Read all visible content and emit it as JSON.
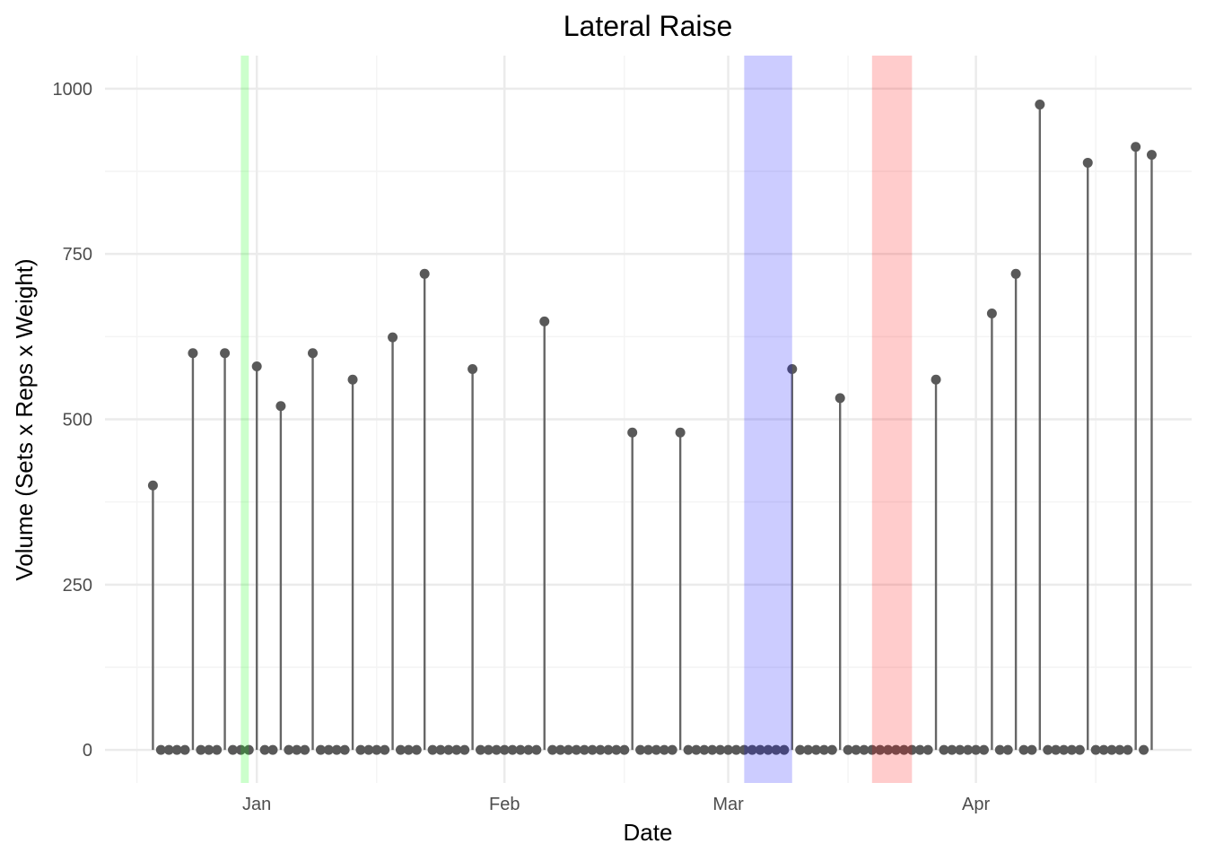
{
  "chart_data": {
    "type": "lollipop",
    "title": "Lateral Raise",
    "xlabel": "Date",
    "ylabel": "Volume (Sets x Reps x Weight)",
    "x_ticks": [
      {
        "date": "2025-01-01",
        "label": "Jan"
      },
      {
        "date": "2025-02-01",
        "label": "Feb"
      },
      {
        "date": "2025-03-01",
        "label": "Mar"
      },
      {
        "date": "2025-04-01",
        "label": "Apr"
      }
    ],
    "x_minor_ticks": [
      "2024-12-17",
      "2025-01-16",
      "2025-02-16",
      "2025-03-16",
      "2025-04-16"
    ],
    "xlim": [
      "2024-12-13",
      "2025-04-28"
    ],
    "ylim": [
      -50,
      1050
    ],
    "y_ticks": [
      0,
      250,
      500,
      750,
      1000
    ],
    "y_minor_ticks": [
      125,
      375,
      625,
      875
    ],
    "grid": true,
    "colors": {
      "stem": "#666666",
      "point": "#595959",
      "grid_major": "#ebebeb",
      "grid_minor": "#f4f4f4",
      "text": "#4d4d4d"
    },
    "highlights": [
      {
        "start": "2024-12-30",
        "end": "2024-12-31",
        "color": "#00ff00",
        "opacity": 0.2
      },
      {
        "start": "2025-03-03",
        "end": "2025-03-09",
        "color": "#0000ff",
        "opacity": 0.2
      },
      {
        "start": "2025-03-19",
        "end": "2025-03-24",
        "color": "#ff0000",
        "opacity": 0.2
      }
    ],
    "series": [
      {
        "points": [
          [
            "2024-12-19",
            400
          ],
          [
            "2024-12-20",
            0
          ],
          [
            "2024-12-21",
            0
          ],
          [
            "2024-12-22",
            0
          ],
          [
            "2024-12-23",
            0
          ],
          [
            "2024-12-24",
            600
          ],
          [
            "2024-12-25",
            0
          ],
          [
            "2024-12-26",
            0
          ],
          [
            "2024-12-27",
            0
          ],
          [
            "2024-12-28",
            600
          ],
          [
            "2024-12-29",
            0
          ],
          [
            "2024-12-30",
            0
          ],
          [
            "2024-12-31",
            0
          ],
          [
            "2025-01-01",
            580
          ],
          [
            "2025-01-02",
            0
          ],
          [
            "2025-01-03",
            0
          ],
          [
            "2025-01-04",
            520
          ],
          [
            "2025-01-05",
            0
          ],
          [
            "2025-01-06",
            0
          ],
          [
            "2025-01-07",
            0
          ],
          [
            "2025-01-08",
            600
          ],
          [
            "2025-01-09",
            0
          ],
          [
            "2025-01-10",
            0
          ],
          [
            "2025-01-11",
            0
          ],
          [
            "2025-01-12",
            0
          ],
          [
            "2025-01-13",
            560
          ],
          [
            "2025-01-14",
            0
          ],
          [
            "2025-01-15",
            0
          ],
          [
            "2025-01-16",
            0
          ],
          [
            "2025-01-17",
            0
          ],
          [
            "2025-01-18",
            624
          ],
          [
            "2025-01-19",
            0
          ],
          [
            "2025-01-20",
            0
          ],
          [
            "2025-01-21",
            0
          ],
          [
            "2025-01-22",
            720
          ],
          [
            "2025-01-23",
            0
          ],
          [
            "2025-01-24",
            0
          ],
          [
            "2025-01-25",
            0
          ],
          [
            "2025-01-26",
            0
          ],
          [
            "2025-01-27",
            0
          ],
          [
            "2025-01-28",
            576
          ],
          [
            "2025-01-29",
            0
          ],
          [
            "2025-01-30",
            0
          ],
          [
            "2025-01-31",
            0
          ],
          [
            "2025-02-01",
            0
          ],
          [
            "2025-02-02",
            0
          ],
          [
            "2025-02-03",
            0
          ],
          [
            "2025-02-04",
            0
          ],
          [
            "2025-02-05",
            0
          ],
          [
            "2025-02-06",
            648
          ],
          [
            "2025-02-07",
            0
          ],
          [
            "2025-02-08",
            0
          ],
          [
            "2025-02-09",
            0
          ],
          [
            "2025-02-10",
            0
          ],
          [
            "2025-02-11",
            0
          ],
          [
            "2025-02-12",
            0
          ],
          [
            "2025-02-13",
            0
          ],
          [
            "2025-02-14",
            0
          ],
          [
            "2025-02-15",
            0
          ],
          [
            "2025-02-16",
            0
          ],
          [
            "2025-02-17",
            480
          ],
          [
            "2025-02-18",
            0
          ],
          [
            "2025-02-19",
            0
          ],
          [
            "2025-02-20",
            0
          ],
          [
            "2025-02-21",
            0
          ],
          [
            "2025-02-22",
            0
          ],
          [
            "2025-02-23",
            480
          ],
          [
            "2025-02-24",
            0
          ],
          [
            "2025-02-25",
            0
          ],
          [
            "2025-02-26",
            0
          ],
          [
            "2025-02-27",
            0
          ],
          [
            "2025-02-28",
            0
          ],
          [
            "2025-03-01",
            0
          ],
          [
            "2025-03-02",
            0
          ],
          [
            "2025-03-03",
            0
          ],
          [
            "2025-03-04",
            0
          ],
          [
            "2025-03-05",
            0
          ],
          [
            "2025-03-06",
            0
          ],
          [
            "2025-03-07",
            0
          ],
          [
            "2025-03-08",
            0
          ],
          [
            "2025-03-09",
            576
          ],
          [
            "2025-03-10",
            0
          ],
          [
            "2025-03-11",
            0
          ],
          [
            "2025-03-12",
            0
          ],
          [
            "2025-03-13",
            0
          ],
          [
            "2025-03-14",
            0
          ],
          [
            "2025-03-15",
            532
          ],
          [
            "2025-03-16",
            0
          ],
          [
            "2025-03-17",
            0
          ],
          [
            "2025-03-18",
            0
          ],
          [
            "2025-03-19",
            0
          ],
          [
            "2025-03-20",
            0
          ],
          [
            "2025-03-21",
            0
          ],
          [
            "2025-03-22",
            0
          ],
          [
            "2025-03-23",
            0
          ],
          [
            "2025-03-24",
            0
          ],
          [
            "2025-03-25",
            0
          ],
          [
            "2025-03-26",
            0
          ],
          [
            "2025-03-27",
            560
          ],
          [
            "2025-03-28",
            0
          ],
          [
            "2025-03-29",
            0
          ],
          [
            "2025-03-30",
            0
          ],
          [
            "2025-03-31",
            0
          ],
          [
            "2025-04-01",
            0
          ],
          [
            "2025-04-02",
            0
          ],
          [
            "2025-04-03",
            660
          ],
          [
            "2025-04-04",
            0
          ],
          [
            "2025-04-05",
            0
          ],
          [
            "2025-04-06",
            720
          ],
          [
            "2025-04-07",
            0
          ],
          [
            "2025-04-08",
            0
          ],
          [
            "2025-04-09",
            976
          ],
          [
            "2025-04-10",
            0
          ],
          [
            "2025-04-11",
            0
          ],
          [
            "2025-04-12",
            0
          ],
          [
            "2025-04-13",
            0
          ],
          [
            "2025-04-14",
            0
          ],
          [
            "2025-04-15",
            888
          ],
          [
            "2025-04-16",
            0
          ],
          [
            "2025-04-17",
            0
          ],
          [
            "2025-04-18",
            0
          ],
          [
            "2025-04-19",
            0
          ],
          [
            "2025-04-20",
            0
          ],
          [
            "2025-04-21",
            912
          ],
          [
            "2025-04-22",
            0
          ],
          [
            "2025-04-23",
            900
          ]
        ]
      }
    ]
  }
}
